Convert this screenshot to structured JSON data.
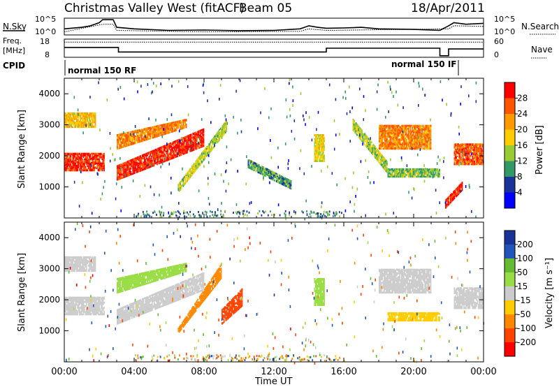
{
  "header": {
    "title": "Christmas Valley West (fitACF)",
    "beam": "Beam 05",
    "date": "18/Apr/2011"
  },
  "summary_panels": {
    "nsky_label": "N.Sky",
    "nsearch_label": "N.Search",
    "freq_label_line1": "Freq.",
    "freq_label_line2": "[MHz]",
    "nave_label": "Nave",
    "cpid_label": "CPID",
    "cpid_mode_1": "normal 150 RF",
    "cpid_mode_2": "normal 150 IF",
    "noise_ticks": [
      "10^5",
      "10^0"
    ],
    "freq_ticks": [
      "18",
      "8"
    ],
    "nave_ticks": [
      "60",
      "0"
    ],
    "noise_sky_profile": [
      [
        0,
        2
      ],
      [
        1,
        2.5
      ],
      [
        1.5,
        3
      ],
      [
        2,
        4
      ],
      [
        2.2,
        5
      ],
      [
        2.8,
        5
      ],
      [
        3,
        2.5
      ],
      [
        4,
        2
      ],
      [
        6,
        1.5
      ],
      [
        8,
        1.6
      ],
      [
        10,
        1.4
      ],
      [
        12,
        1.5
      ],
      [
        13.5,
        2
      ],
      [
        14,
        3
      ],
      [
        14.5,
        2.5
      ],
      [
        15,
        2.2
      ],
      [
        16,
        2.3
      ],
      [
        17,
        2.5
      ],
      [
        18,
        2
      ],
      [
        20,
        1.8
      ],
      [
        21.5,
        1.5
      ],
      [
        22,
        3
      ],
      [
        22.3,
        4
      ],
      [
        23,
        3.5
      ],
      [
        24,
        3.8
      ]
    ],
    "noise_search_profile": [
      [
        0,
        1
      ],
      [
        2.2,
        3.5
      ],
      [
        2.8,
        3.5
      ],
      [
        3,
        1.5
      ],
      [
        8,
        1
      ],
      [
        13.5,
        1.2
      ],
      [
        14,
        2
      ],
      [
        15,
        1.5
      ],
      [
        22,
        2
      ],
      [
        22.3,
        3
      ],
      [
        24,
        2.8
      ]
    ],
    "freq_profile": [
      [
        0,
        13.5
      ],
      [
        3.1,
        13.5
      ],
      [
        3.1,
        10.5
      ],
      [
        15,
        10.5
      ],
      [
        15,
        13
      ],
      [
        21.5,
        13
      ],
      [
        21.5,
        8
      ],
      [
        22,
        8
      ],
      [
        22,
        12.5
      ],
      [
        24,
        12.5
      ]
    ],
    "nave_profile": [
      [
        0,
        52
      ],
      [
        24,
        52
      ]
    ]
  },
  "power_panel": {
    "ylabel": "Slant Range [km]",
    "colorbar_label": "Power [dB]",
    "colorbar_ticks": [
      "28",
      "24",
      "20",
      "16",
      "12",
      "8",
      "4"
    ],
    "colorbar_colors": [
      "#ff0000",
      "#ff5500",
      "#ff9900",
      "#ffcc00",
      "#99cc33",
      "#339966",
      "#1a3399",
      "#0000ff"
    ]
  },
  "velocity_panel": {
    "ylabel": "Slant Range [km]",
    "colorbar_label": "Velocity [m s⁻¹]",
    "colorbar_ticks": [
      "200",
      "100",
      "50",
      "15",
      "-15",
      "-50",
      "-100",
      "-200"
    ],
    "colorbar_colors": [
      "#1a3399",
      "#2255bb",
      "#66bb33",
      "#99dd44",
      "#cccccc",
      "#ffcc00",
      "#ff8800",
      "#ff4400",
      "#ff0000"
    ]
  },
  "x_axis": {
    "label": "Time UT",
    "ticks": [
      "00:00",
      "04:00",
      "08:00",
      "12:00",
      "16:00",
      "20:00",
      "00:00"
    ]
  },
  "chart_data": {
    "type": "heatmap",
    "title": "Christmas Valley West (fitACF)",
    "subtitle": "Beam 05",
    "date": "18/Apr/2011",
    "xlabel": "Time UT",
    "ylabel": "Slant Range [km]",
    "xlim_hours": [
      0,
      24
    ],
    "ylim_km": [
      0,
      4500
    ],
    "yticks": [
      1000,
      2000,
      3000,
      4000
    ],
    "panels": [
      {
        "name": "Power",
        "unit": "dB",
        "scale": [
          0,
          30
        ],
        "colorbar_ticks": [
          4,
          8,
          12,
          16,
          20,
          24,
          28
        ],
        "echo_bands": [
          {
            "t": [
              0.0,
              2.3
            ],
            "r0": 1500,
            "r1": 2100,
            "v": 26
          },
          {
            "t": [
              0.0,
              1.8
            ],
            "r0": 2900,
            "r1": 3400,
            "v": 18
          },
          {
            "t": [
              3.0,
              8.0
            ],
            "r0": [
              1200,
              2300
            ],
            "r1": [
              1700,
              2900
            ],
            "v": 27
          },
          {
            "t": [
              3.0,
              7.0
            ],
            "r0": [
              2200,
              2900
            ],
            "r1": [
              2700,
              3200
            ],
            "v": 22
          },
          {
            "t": [
              6.5,
              9.3
            ],
            "r0": [
              800,
              2800
            ],
            "r1": [
              1100,
              3200
            ],
            "v": 14
          },
          {
            "t": [
              10.5,
              13.0
            ],
            "r0": [
              1600,
              900
            ],
            "r1": [
              1900,
              1200
            ],
            "v": 10
          },
          {
            "t": [
              14.3,
              14.9
            ],
            "r0": 1800,
            "r1": 2700,
            "v": 16
          },
          {
            "t": [
              16.5,
              18.5
            ],
            "r0": [
              2800,
              1400
            ],
            "r1": [
              3200,
              1800
            ],
            "v": 14
          },
          {
            "t": [
              18.0,
              21.0
            ],
            "r0": 2200,
            "r1": 3000,
            "v": 22
          },
          {
            "t": [
              18.5,
              21.5
            ],
            "r0": 1300,
            "r1": 1600,
            "v": 12
          },
          {
            "t": [
              22.3,
              24.0
            ],
            "r0": 1700,
            "r1": 2400,
            "v": 24
          },
          {
            "t": [
              21.8,
              22.8
            ],
            "r0": [
              300,
              900
            ],
            "r1": [
              600,
              1200
            ],
            "v": 28
          }
        ]
      },
      {
        "name": "Velocity",
        "unit": "m s⁻¹",
        "scale": [
          -200,
          200
        ],
        "colorbar_ticks": [
          -200,
          -100,
          -50,
          -15,
          15,
          50,
          100,
          200
        ],
        "echo_bands": [
          {
            "t": [
              0.0,
              2.3
            ],
            "r0": 1500,
            "r1": 2100,
            "v": 0
          },
          {
            "t": [
              0.0,
              1.8
            ],
            "r0": 2900,
            "r1": 3400,
            "v": 0
          },
          {
            "t": [
              3.0,
              8.0
            ],
            "r0": [
              1200,
              2300
            ],
            "r1": [
              1700,
              2900
            ],
            "v": 0
          },
          {
            "t": [
              3.0,
              7.0
            ],
            "r0": [
              2200,
              2900
            ],
            "r1": [
              2700,
              3200
            ],
            "v": 30
          },
          {
            "t": [
              6.5,
              9.0
            ],
            "r0": [
              900,
              2700
            ],
            "r1": [
              1100,
              3200
            ],
            "v": -60
          },
          {
            "t": [
              9.0,
              10.2
            ],
            "r0": [
              1200,
              1800
            ],
            "r1": [
              1700,
              2400
            ],
            "v": -180
          },
          {
            "t": [
              14.3,
              14.9
            ],
            "r0": 1800,
            "r1": 2700,
            "v": 30
          },
          {
            "t": [
              18.0,
              21.0
            ],
            "r0": 2200,
            "r1": 3000,
            "v": 0
          },
          {
            "t": [
              18.5,
              21.5
            ],
            "r0": 1300,
            "r1": 1600,
            "v": -40
          },
          {
            "t": [
              22.3,
              24.0
            ],
            "r0": 1700,
            "r1": 2400,
            "v": 0
          }
        ]
      }
    ]
  }
}
